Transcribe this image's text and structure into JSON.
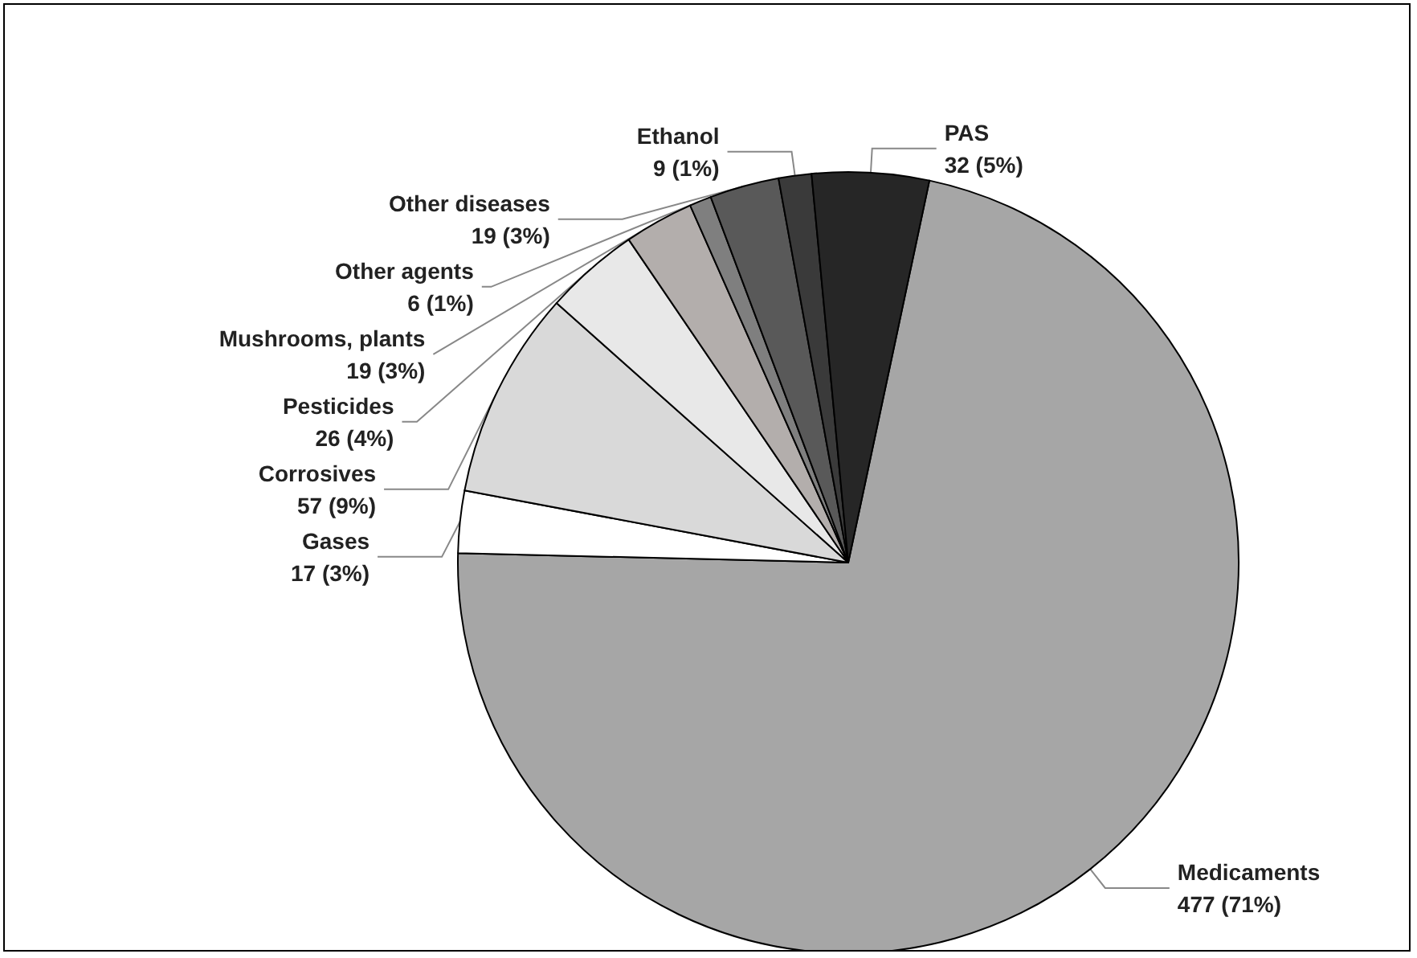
{
  "chart_data": {
    "type": "pie",
    "categories": [
      "Medicaments",
      "Gases",
      "Corrosives",
      "Pesticides",
      "Mushrooms, plants",
      "Other agents",
      "Other diseases",
      "Ethanol",
      "PAS"
    ],
    "values": [
      477,
      17,
      57,
      26,
      19,
      6,
      19,
      9,
      32
    ],
    "value_labels": [
      "477 (71%)",
      "17 (3%)",
      "57 (9%)",
      "26 (4%)",
      "19 (3%)",
      "6 (1%)",
      "19 (3%)",
      "9 (1%)",
      "32 (5%)"
    ],
    "colors": [
      "#a6a6a6",
      "#ffffff",
      "#d9d9d9",
      "#e8e8e8",
      "#b3aeac",
      "#7f7f7f",
      "#595959",
      "#3a3a3a",
      "#262626"
    ],
    "legend": false
  }
}
